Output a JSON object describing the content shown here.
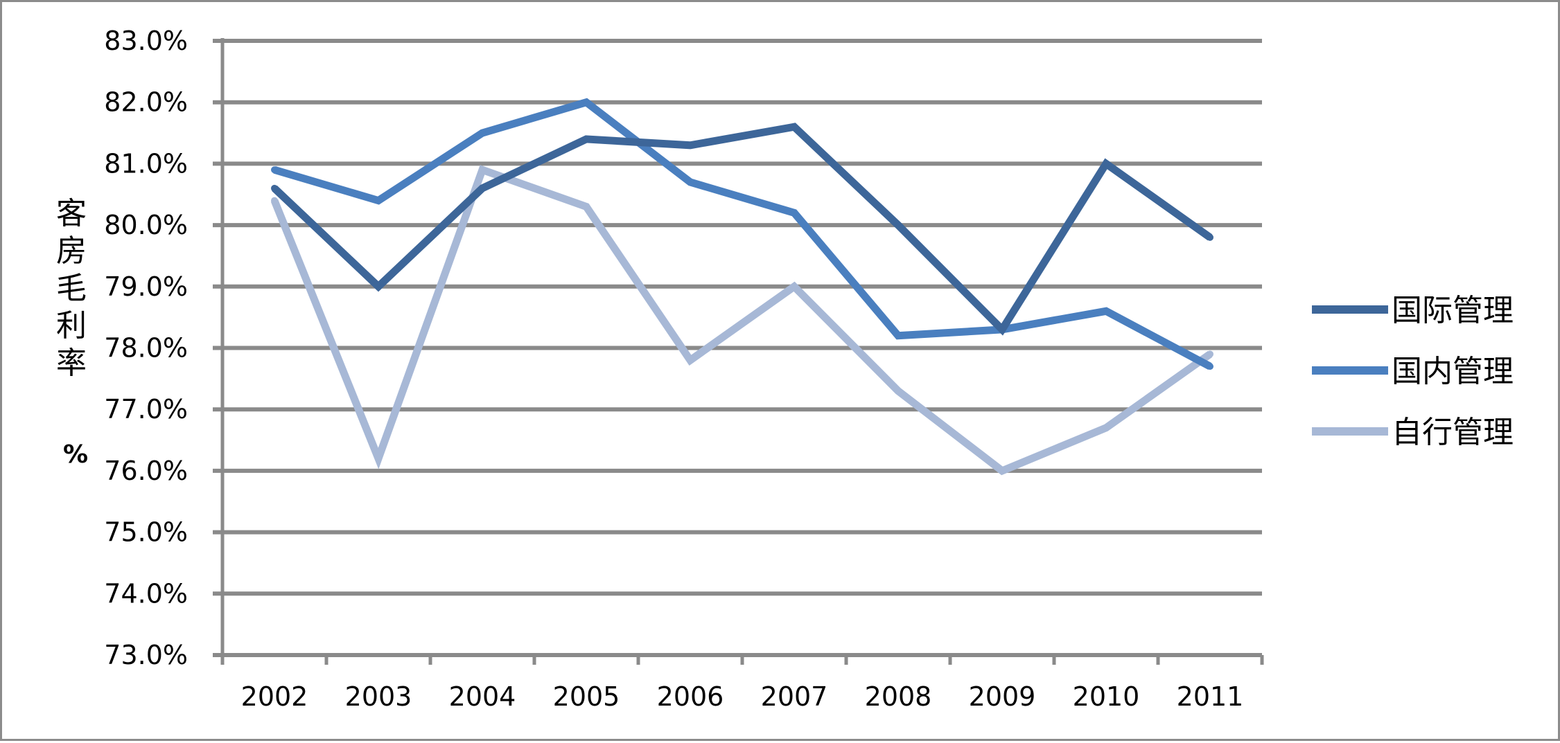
{
  "chart_data": {
    "type": "line",
    "title": "",
    "xlabel": "",
    "ylabel": "客房毛利率",
    "ylabel_unit": "%",
    "categories": [
      "2002",
      "2003",
      "2004",
      "2005",
      "2006",
      "2007",
      "2008",
      "2009",
      "2010",
      "2011"
    ],
    "y_ticks": [
      "73.0%",
      "74.0%",
      "75.0%",
      "76.0%",
      "77.0%",
      "78.0%",
      "79.0%",
      "80.0%",
      "81.0%",
      "82.0%",
      "83.0%"
    ],
    "ylim": [
      73,
      83
    ],
    "grid": true,
    "legend_position": "right",
    "series": [
      {
        "name": "国际管理",
        "color": "#3d6699",
        "values": [
          80.6,
          79.0,
          80.6,
          81.4,
          81.3,
          81.6,
          80.0,
          78.3,
          81.0,
          79.8
        ]
      },
      {
        "name": "国内管理",
        "color": "#4a7fbf",
        "values": [
          80.9,
          80.4,
          81.5,
          82.0,
          80.7,
          80.2,
          78.2,
          78.3,
          78.6,
          77.7
        ]
      },
      {
        "name": "自行管理",
        "color": "#a7b8d6",
        "values": [
          80.4,
          76.2,
          80.9,
          80.3,
          77.8,
          79.0,
          77.3,
          76.0,
          76.7,
          77.9
        ]
      }
    ]
  }
}
